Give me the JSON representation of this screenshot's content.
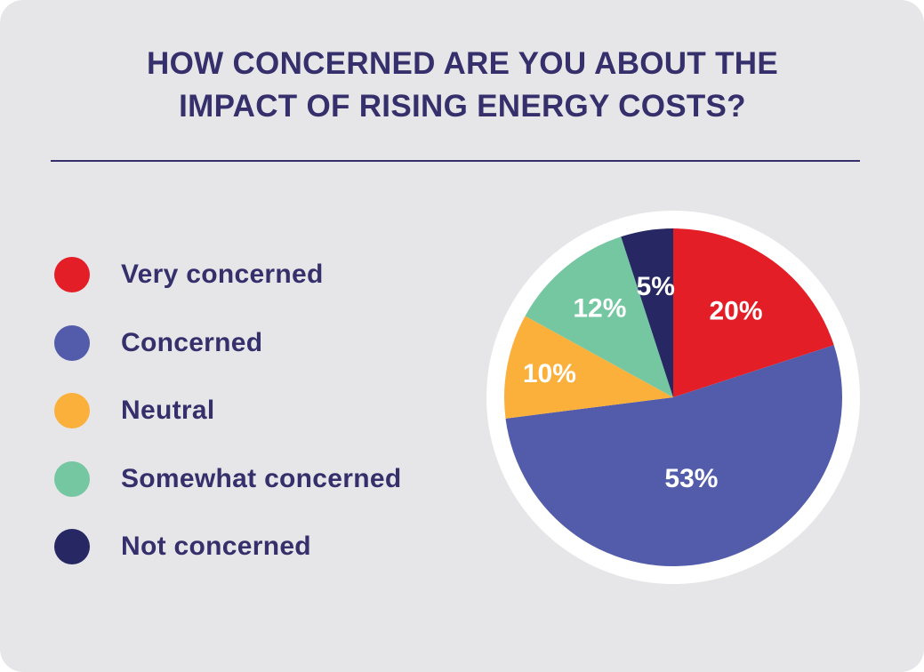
{
  "title_lines": [
    "HOW CONCERNED ARE YOU ABOUT THE",
    "IMPACT OF RISING ENERGY COSTS?"
  ],
  "chart_data": {
    "type": "pie",
    "title": "HOW CONCERNED ARE YOU ABOUT THE IMPACT OF RISING ENERGY COSTS?",
    "unit": "%",
    "slices": [
      {
        "label": "Very concerned",
        "value": 20,
        "display": "20%",
        "color": "#e31e26"
      },
      {
        "label": "Concerned",
        "value": 53,
        "display": "53%",
        "color": "#525cab"
      },
      {
        "label": "Neutral",
        "value": 10,
        "display": "10%",
        "color": "#fbb03b"
      },
      {
        "label": "Somewhat concerned",
        "value": 12,
        "display": "12%",
        "color": "#75c7a1"
      },
      {
        "label": "Not concerned",
        "value": 5,
        "display": "5%",
        "color": "#262763"
      }
    ],
    "legend_position": "left"
  }
}
